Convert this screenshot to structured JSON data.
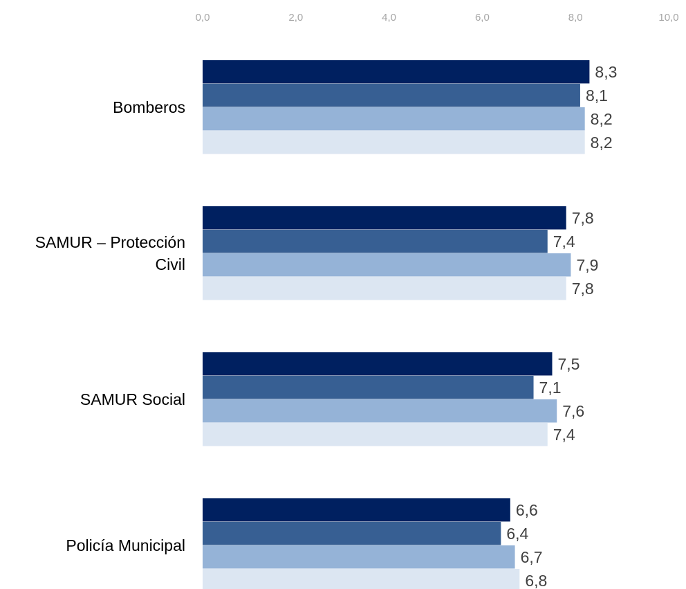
{
  "chart_data": {
    "type": "bar",
    "orientation": "horizontal",
    "title": "",
    "xlabel": "",
    "ylabel": "",
    "xlim": [
      0,
      10
    ],
    "x_ticks": [
      "0,0",
      "2,0",
      "4,0",
      "6,0",
      "8,0",
      "10,0"
    ],
    "x_axis_position": "top",
    "grid": false,
    "legend": "none",
    "categories": [
      {
        "lines": [
          "Bomberos"
        ]
      },
      {
        "lines": [
          "SAMUR – Protección",
          "Civil"
        ]
      },
      {
        "lines": [
          "SAMUR Social"
        ]
      },
      {
        "lines": [
          "Policía Municipal"
        ]
      }
    ],
    "series": [
      {
        "color": "#002060",
        "values": [
          8.3,
          7.8,
          7.5,
          6.6
        ],
        "labels": [
          "8,3",
          "7,8",
          "7,5",
          "6,6"
        ]
      },
      {
        "color": "#375F93",
        "values": [
          8.1,
          7.4,
          7.1,
          6.4
        ],
        "labels": [
          "8,1",
          "7,4",
          "7,1",
          "6,4"
        ]
      },
      {
        "color": "#95B3D7",
        "values": [
          8.2,
          7.9,
          7.6,
          6.7
        ],
        "labels": [
          "8,2",
          "7,9",
          "7,6",
          "6,7"
        ]
      },
      {
        "color": "#DCE6F2",
        "values": [
          8.2,
          7.8,
          7.4,
          6.8
        ],
        "labels": [
          "8,2",
          "7,8",
          "7,4",
          "6,8"
        ]
      }
    ]
  }
}
